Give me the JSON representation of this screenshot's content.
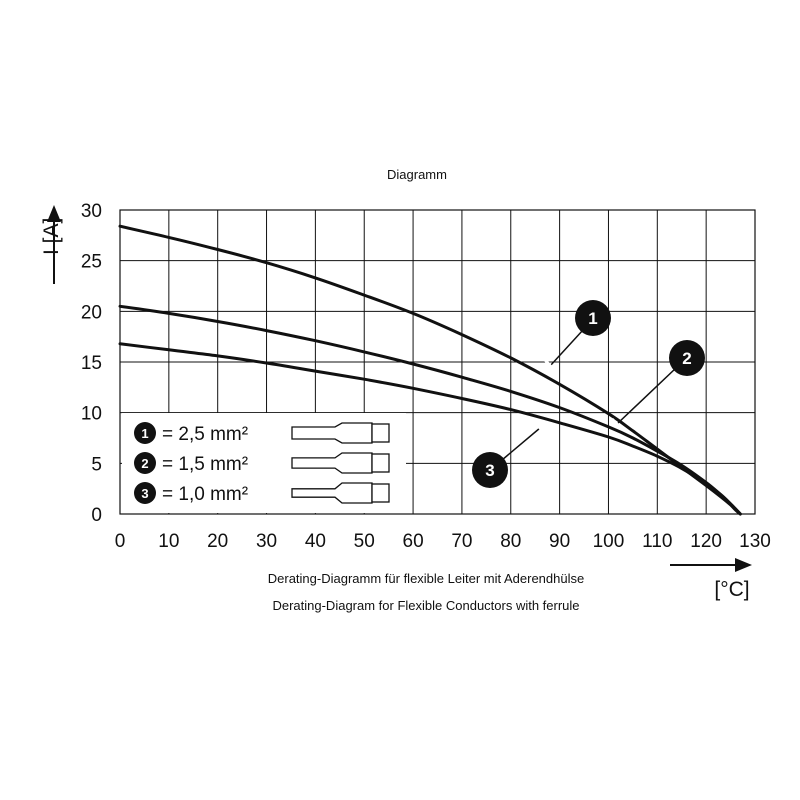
{
  "chart_data": {
    "type": "line",
    "title": "Diagramm",
    "xlabel": "[°C]",
    "ylabel": "I [A]",
    "xlim": [
      0,
      127
    ],
    "ylim": [
      0,
      30
    ],
    "x_ticks": [
      "0",
      "10",
      "20",
      "30",
      "40",
      "50",
      "60",
      "70",
      "80",
      "90",
      "100",
      "110",
      "120",
      "130"
    ],
    "y_ticks": [
      "0",
      "5",
      "10",
      "15",
      "20",
      "25",
      "30"
    ],
    "grid": true,
    "series": [
      {
        "name": "= 2,5 mm²",
        "marker": "1",
        "x": [
          0,
          10,
          20,
          30,
          40,
          50,
          60,
          70,
          80,
          90,
          100,
          105,
          110,
          115,
          120,
          123,
          125,
          126,
          127
        ],
        "y": [
          28.4,
          27.3,
          26.1,
          24.8,
          23.3,
          21.6,
          19.8,
          17.7,
          15.4,
          12.8,
          9.9,
          8.2,
          6.4,
          4.6,
          2.8,
          1.7,
          0.9,
          0.4,
          0
        ]
      },
      {
        "name": "= 1,5 mm²",
        "marker": "2",
        "x": [
          0,
          10,
          20,
          30,
          40,
          50,
          60,
          70,
          80,
          90,
          100,
          105,
          110,
          115,
          120,
          123,
          125,
          126,
          127
        ],
        "y": [
          20.5,
          19.8,
          19.0,
          18.1,
          17.1,
          16.0,
          14.8,
          13.5,
          12.1,
          10.5,
          8.6,
          7.5,
          6.2,
          4.8,
          3.1,
          1.9,
          1.0,
          0.5,
          0
        ]
      },
      {
        "name": "= 1,0 mm²",
        "marker": "3",
        "x": [
          0,
          10,
          20,
          30,
          40,
          50,
          60,
          70,
          80,
          90,
          100,
          105,
          110,
          115,
          120,
          123,
          125,
          126,
          127
        ],
        "y": [
          16.8,
          16.2,
          15.6,
          14.9,
          14.1,
          13.3,
          12.4,
          11.4,
          10.3,
          9.0,
          7.6,
          6.7,
          5.7,
          4.5,
          3.0,
          1.9,
          1.0,
          0.5,
          0
        ]
      }
    ],
    "legend": "bottom-left",
    "captions": [
      "Derating-Diagramm für flexible Leiter mit Aderendhülse",
      "Derating-Diagram for Flexible Conductors with ferrule"
    ]
  }
}
